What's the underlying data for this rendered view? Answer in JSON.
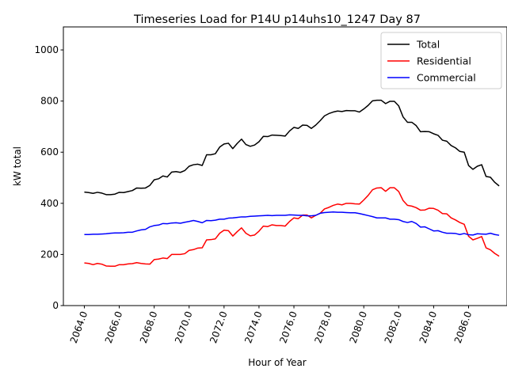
{
  "chart_data": {
    "type": "line",
    "title": "Timeseries Load for P14U p14uhs10_1247  Day 87",
    "xlabel": "Hour of Year",
    "ylabel": "kW total",
    "xlim": [
      2062.8,
      2088.2
    ],
    "ylim": [
      0,
      1090
    ],
    "xticks": [
      2064,
      2066,
      2068,
      2070,
      2072,
      2074,
      2076,
      2078,
      2080,
      2082,
      2084,
      2086
    ],
    "xtick_labels": [
      "2064.0",
      "2066.0",
      "2068.0",
      "2070.0",
      "2072.0",
      "2074.0",
      "2076.0",
      "2078.0",
      "2080.0",
      "2082.0",
      "2084.0",
      "2086.0"
    ],
    "yticks": [
      0,
      200,
      400,
      600,
      800,
      1000
    ],
    "ytick_labels": [
      "0",
      "200",
      "400",
      "600",
      "800",
      "1000"
    ],
    "legend_position": "top-right",
    "x_start": 2064.0,
    "x_step": 0.25,
    "series": [
      {
        "name": "Total",
        "color": "#000000",
        "values": [
          444,
          442,
          439,
          443,
          440,
          434,
          434,
          436,
          443,
          442,
          446,
          450,
          460,
          459,
          460,
          470,
          492,
          496,
          507,
          503,
          522,
          524,
          521,
          528,
          545,
          551,
          553,
          548,
          590,
          590,
          594,
          620,
          632,
          635,
          614,
          634,
          651,
          630,
          623,
          628,
          641,
          662,
          661,
          667,
          666,
          665,
          663,
          683,
          697,
          693,
          706,
          705,
          693,
          706,
          723,
          742,
          751,
          757,
          761,
          759,
          763,
          762,
          762,
          757,
          769,
          783,
          801,
          803,
          803,
          790,
          799,
          799,
          781,
          738,
          717,
          717,
          704,
          680,
          681,
          680,
          672,
          666,
          647,
          643,
          626,
          617,
          603,
          600,
          548,
          533,
          545,
          551,
          505,
          502,
          482,
          468
        ]
      },
      {
        "name": "Residential",
        "color": "#ff0000",
        "values": [
          167,
          165,
          160,
          165,
          162,
          155,
          154,
          154,
          160,
          160,
          163,
          164,
          168,
          165,
          163,
          162,
          180,
          182,
          186,
          184,
          200,
          200,
          200,
          203,
          216,
          219,
          225,
          226,
          257,
          258,
          261,
          283,
          295,
          293,
          272,
          289,
          304,
          283,
          273,
          276,
          291,
          311,
          309,
          316,
          313,
          313,
          311,
          329,
          343,
          340,
          354,
          354,
          343,
          353,
          361,
          378,
          384,
          392,
          397,
          394,
          400,
          400,
          398,
          397,
          413,
          431,
          453,
          460,
          461,
          447,
          461,
          461,
          446,
          411,
          392,
          389,
          383,
          373,
          374,
          381,
          380,
          373,
          360,
          359,
          343,
          335,
          325,
          318,
          271,
          257,
          263,
          270,
          226,
          218,
          204,
          193
        ]
      },
      {
        "name": "Commercial",
        "color": "#0000ff",
        "values": [
          278,
          278,
          279,
          279,
          280,
          281,
          283,
          284,
          284,
          285,
          287,
          287,
          292,
          296,
          298,
          308,
          313,
          315,
          321,
          320,
          323,
          324,
          322,
          326,
          329,
          333,
          329,
          324,
          333,
          332,
          334,
          338,
          338,
          342,
          343,
          345,
          347,
          347,
          349,
          350,
          351,
          352,
          353,
          352,
          353,
          353,
          353,
          355,
          354,
          353,
          353,
          351,
          351,
          353,
          361,
          364,
          365,
          366,
          365,
          365,
          364,
          363,
          363,
          360,
          356,
          352,
          348,
          343,
          343,
          343,
          338,
          338,
          336,
          329,
          325,
          329,
          321,
          307,
          308,
          300,
          292,
          293,
          287,
          283,
          283,
          282,
          278,
          282,
          277,
          276,
          281,
          280,
          279,
          283,
          278,
          275
        ]
      }
    ]
  }
}
